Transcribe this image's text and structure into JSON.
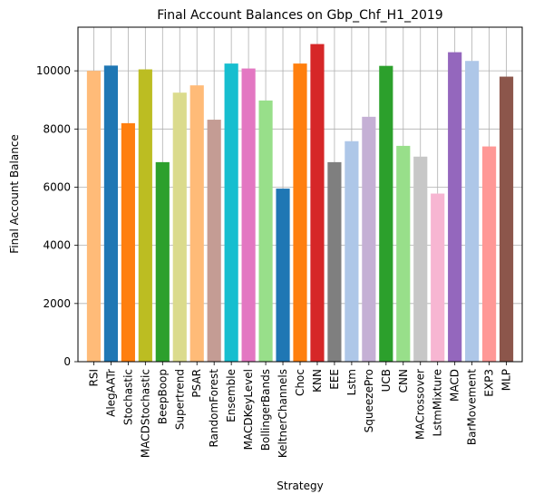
{
  "chart_data": {
    "type": "bar",
    "title": "Final Account Balances on Gbp_Chf_H1_2019",
    "xlabel": "Strategy",
    "ylabel": "Final Account Balance",
    "ylim": [
      0,
      11500
    ],
    "yticks": [
      0,
      2000,
      4000,
      6000,
      8000,
      10000
    ],
    "grid": true,
    "categories": [
      "RSI",
      "AlegAATr",
      "Stochastic",
      "MACDStochastic",
      "BeepBoop",
      "Supertrend",
      "PSAR",
      "RandomForest",
      "Ensemble",
      "MACDKeyLevel",
      "BollingerBands",
      "KeltnerChannels",
      "Choc",
      "KNN",
      "EEE",
      "Lstm",
      "SqueezePro",
      "UCB",
      "CNN",
      "MACrossover",
      "LstmMixture",
      "MACD",
      "BarMovement",
      "EXP3",
      "MLP"
    ],
    "values": [
      10000,
      10180,
      8200,
      10050,
      6860,
      9250,
      9500,
      8320,
      10250,
      10080,
      8980,
      5950,
      10250,
      10920,
      6860,
      7580,
      8420,
      10170,
      7420,
      7050,
      5780,
      10640,
      10340,
      7400,
      9800
    ],
    "colors": [
      "#ffbb78",
      "#1f77b4",
      "#ff7f0e",
      "#bcbd22",
      "#2ca02c",
      "#dbdb8d",
      "#ffbb78",
      "#c49c94",
      "#17becf",
      "#e377c2",
      "#98df8a",
      "#1f77b4",
      "#ff7f0e",
      "#d62728",
      "#7f7f7f",
      "#aec7e8",
      "#c5b0d5",
      "#2ca02c",
      "#98df8a",
      "#c7c7c7",
      "#f7b6d2",
      "#9467bd",
      "#aec7e8",
      "#ff9896",
      "#8c564b"
    ]
  }
}
